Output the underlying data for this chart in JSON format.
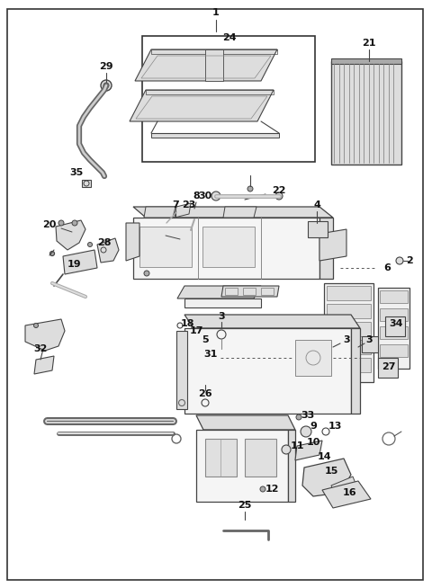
{
  "bg_color": "#ffffff",
  "border_color": "#222222",
  "line_color": "#444444",
  "gray_part": "#aaaaaa",
  "light_gray": "#dddddd",
  "dark_gray": "#666666",
  "fig_width": 4.8,
  "fig_height": 6.54,
  "dpi": 100
}
